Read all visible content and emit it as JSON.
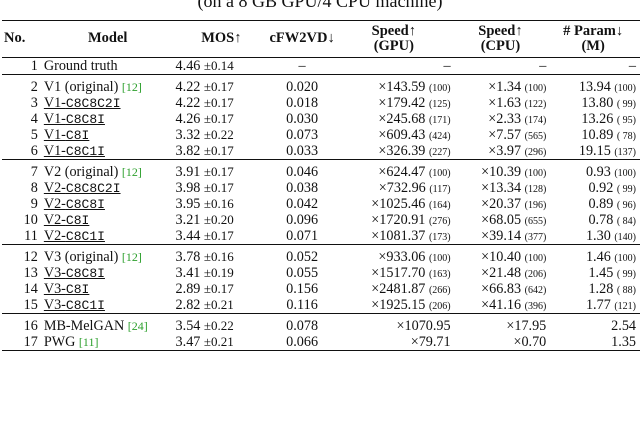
{
  "caption_fragment": "(on a 8 GB GPU/4 CPU machine)",
  "headers": {
    "no": "No.",
    "model": "Model",
    "mos": "MOS↑",
    "cfw2vd": "cFW2VD↓",
    "speed_gpu": "Speed↑",
    "speed_gpu_sub": "(GPU)",
    "speed_cpu": "Speed↑",
    "speed_cpu_sub": "(CPU)",
    "param": "# Param↓",
    "param_sub": "(M)"
  },
  "rows": [
    {
      "no": "1",
      "name": "Ground truth",
      "mos": "4.46",
      "ci": "±0.14",
      "fw": "–",
      "gpu": "–",
      "gpu_rel": "",
      "cpu": "–",
      "cpu_rel": "",
      "param": "–",
      "param_rel": ""
    },
    {
      "no": "2",
      "name": "V1 (original)",
      "cite": "[12]",
      "mos": "4.22",
      "ci": "±0.17",
      "fw": "0.020",
      "gpu": "×143.59",
      "gpu_rel": "(100)",
      "cpu": "×1.34",
      "cpu_rel": "(100)",
      "param": "13.94",
      "param_rel": "(100)"
    },
    {
      "no": "3",
      "name": "V1-",
      "suffix": "C8C8C2I",
      "mos": "4.22",
      "ci": "±0.17",
      "fw": "0.018",
      "gpu": "×179.42",
      "gpu_rel": "(125)",
      "cpu": "×1.63",
      "cpu_rel": "(122)",
      "param": "13.80",
      "param_rel": "( 99)"
    },
    {
      "no": "4",
      "name": "V1-",
      "suffix": "C8C8I",
      "mos": "4.26",
      "ci": "±0.17",
      "fw": "0.030",
      "gpu": "×245.68",
      "gpu_rel": "(171)",
      "cpu": "×2.33",
      "cpu_rel": "(174)",
      "param": "13.26",
      "param_rel": "( 95)"
    },
    {
      "no": "5",
      "name": "V1-",
      "suffix": "C8I",
      "mos": "3.32",
      "ci": "±0.22",
      "fw": "0.073",
      "gpu": "×609.43",
      "gpu_rel": "(424)",
      "cpu": "×7.57",
      "cpu_rel": "(565)",
      "param": "10.89",
      "param_rel": "( 78)"
    },
    {
      "no": "6",
      "name": "V1-",
      "suffix": "C8C1I",
      "mos": "3.82",
      "ci": "±0.17",
      "fw": "0.033",
      "gpu": "×326.39",
      "gpu_rel": "(227)",
      "cpu": "×3.97",
      "cpu_rel": "(296)",
      "param": "19.15",
      "param_rel": "(137)"
    },
    {
      "no": "7",
      "name": "V2 (original)",
      "cite": "[12]",
      "mos": "3.91",
      "ci": "±0.17",
      "fw": "0.046",
      "gpu": "×624.47",
      "gpu_rel": "(100)",
      "cpu": "×10.39",
      "cpu_rel": "(100)",
      "param": "0.93",
      "param_rel": "(100)"
    },
    {
      "no": "8",
      "name": "V2-",
      "suffix": "C8C8C2I",
      "mos": "3.98",
      "ci": "±0.17",
      "fw": "0.038",
      "gpu": "×732.96",
      "gpu_rel": "(117)",
      "cpu": "×13.34",
      "cpu_rel": "(128)",
      "param": "0.92",
      "param_rel": "( 99)"
    },
    {
      "no": "9",
      "name": "V2-",
      "suffix": "C8C8I",
      "mos": "3.95",
      "ci": "±0.16",
      "fw": "0.042",
      "gpu": "×1025.46",
      "gpu_rel": "(164)",
      "cpu": "×20.37",
      "cpu_rel": "(196)",
      "param": "0.89",
      "param_rel": "( 96)"
    },
    {
      "no": "10",
      "name": "V2-",
      "suffix": "C8I",
      "mos": "3.21",
      "ci": "±0.20",
      "fw": "0.096",
      "gpu": "×1720.91",
      "gpu_rel": "(276)",
      "cpu": "×68.05",
      "cpu_rel": "(655)",
      "param": "0.78",
      "param_rel": "( 84)"
    },
    {
      "no": "11",
      "name": "V2-",
      "suffix": "C8C1I",
      "mos": "3.44",
      "ci": "±0.17",
      "fw": "0.071",
      "gpu": "×1081.37",
      "gpu_rel": "(173)",
      "cpu": "×39.14",
      "cpu_rel": "(377)",
      "param": "1.30",
      "param_rel": "(140)"
    },
    {
      "no": "12",
      "name": "V3 (original)",
      "cite": "[12]",
      "mos": "3.78",
      "ci": "±0.16",
      "fw": "0.052",
      "gpu": "×933.06",
      "gpu_rel": "(100)",
      "cpu": "×10.40",
      "cpu_rel": "(100)",
      "param": "1.46",
      "param_rel": "(100)"
    },
    {
      "no": "13",
      "name": "V3-",
      "suffix": "C8C8I",
      "mos": "3.41",
      "ci": "±0.19",
      "fw": "0.055",
      "gpu": "×1517.70",
      "gpu_rel": "(163)",
      "cpu": "×21.48",
      "cpu_rel": "(206)",
      "param": "1.45",
      "param_rel": "( 99)"
    },
    {
      "no": "14",
      "name": "V3-",
      "suffix": "C8I",
      "mos": "2.89",
      "ci": "±0.17",
      "fw": "0.156",
      "gpu": "×2481.87",
      "gpu_rel": "(266)",
      "cpu": "×66.83",
      "cpu_rel": "(642)",
      "param": "1.28",
      "param_rel": "( 88)"
    },
    {
      "no": "15",
      "name": "V3-",
      "suffix": "C8C1I",
      "mos": "2.82",
      "ci": "±0.21",
      "fw": "0.116",
      "gpu": "×1925.15",
      "gpu_rel": "(206)",
      "cpu": "×41.16",
      "cpu_rel": "(396)",
      "param": "1.77",
      "param_rel": "(121)"
    },
    {
      "no": "16",
      "name": "MB-MelGAN",
      "cite": "[24]",
      "mos": "3.54",
      "ci": "±0.22",
      "fw": "0.078",
      "gpu": "×1070.95",
      "gpu_rel": "",
      "cpu": "×17.95",
      "cpu_rel": "",
      "param": "2.54",
      "param_rel": ""
    },
    {
      "no": "17",
      "name": "PWG",
      "cite": "[11]",
      "mos": "3.47",
      "ci": "±0.21",
      "fw": "0.066",
      "gpu": "×79.71",
      "gpu_rel": "",
      "cpu": "×0.70",
      "cpu_rel": "",
      "param": "1.35",
      "param_rel": ""
    }
  ]
}
